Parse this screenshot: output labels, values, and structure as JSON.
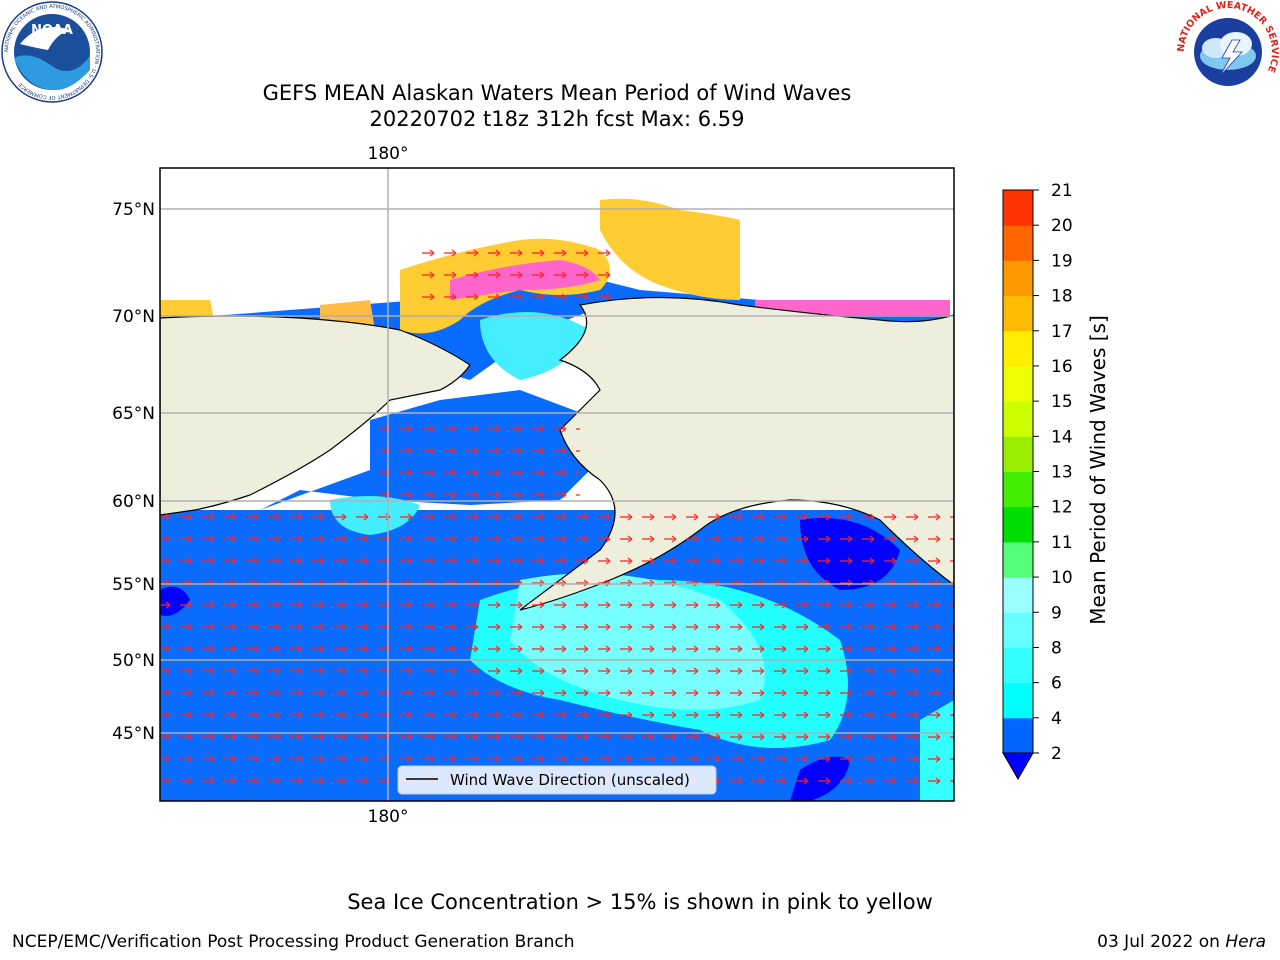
{
  "title_line1": "GEFS MEAN Alaskan Waters Mean Period of Wind Waves",
  "title_line2": "20220702 t18z 312h fcst   Max: 6.59",
  "map": {
    "lon_label": "180°",
    "lat_labels": [
      "75°N",
      "70°N",
      "65°N",
      "60°N",
      "55°N",
      "50°N",
      "45°N"
    ],
    "legend_text": "Wind Wave Direction (unscaled)"
  },
  "colorbar": {
    "label": "Mean Period of Wind Waves [s]",
    "ticks": [
      "2",
      "4",
      "6",
      "8",
      "9",
      "10",
      "11",
      "12",
      "13",
      "14",
      "15",
      "16",
      "17",
      "18",
      "19",
      "20",
      "21"
    ],
    "colors": [
      "#0066ff",
      "#00ffff",
      "#33ffff",
      "#66ffff",
      "#99ffff",
      "#55ff77",
      "#00dd00",
      "#44ee00",
      "#99ee00",
      "#ccff00",
      "#eeff00",
      "#ffee00",
      "#ffbb00",
      "#ff9900",
      "#ff6600",
      "#ff3300",
      "#ff0000"
    ],
    "under_color": "#0000ff"
  },
  "footer_note": "Sea Ice Concentration > 15% is shown in pink to yellow",
  "credit": "NCEP/EMC/Verification Post Processing Product Generation Branch",
  "date_prefix": "03 Jul 2022 on",
  "date_machine": "Hera",
  "logos": {
    "noaa_text": "NOAA",
    "noaa_ring": "NATIONAL OCEANIC AND ATMOSPHERIC ADMINISTRATION · U.S. DEPARTMENT OF COMMERCE",
    "nws_ring": "NATIONAL WEATHER SERVICE"
  }
}
